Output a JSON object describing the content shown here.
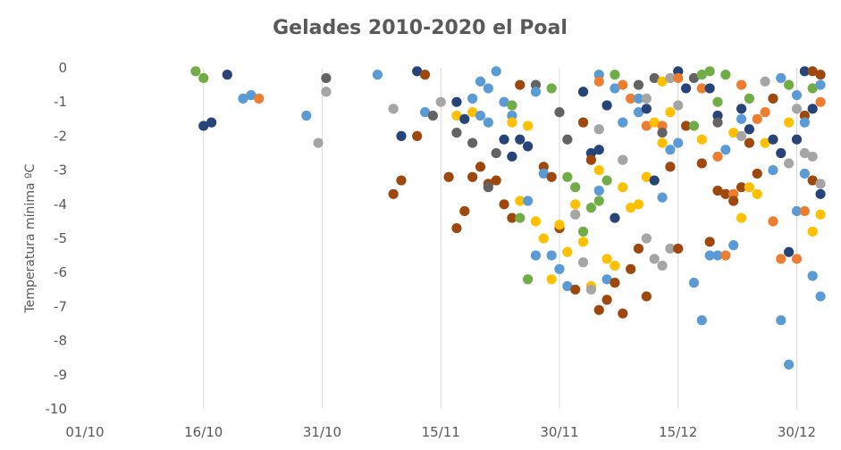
{
  "chart_data": {
    "type": "scatter",
    "title": "Gelades 2010-2020 el Poal",
    "ylabel": "Temperatura mínima ºC",
    "xlabel": "",
    "ylim": [
      -10,
      0
    ],
    "y_ticks": [
      "0",
      "-1",
      "-2",
      "-3",
      "-4",
      "-5",
      "-6",
      "-7",
      "-8",
      "-9",
      "-10"
    ],
    "x_ticks": [
      "01/10",
      "16/10",
      "31/10",
      "15/11",
      "30/11",
      "15/12",
      "30/12"
    ],
    "x_axis": "day of the cold season, 01/10 = 0, one unit per day",
    "grid": "vertical lines at each x tick",
    "legend": "none",
    "colors": {
      "blue": "#5b9bd5",
      "orange": "#ed7d31",
      "gray": "#a5a5a5",
      "gold": "#ffc000",
      "green": "#70ad47",
      "navy": "#264478",
      "brown": "#9e480e",
      "darkgray": "#636363"
    },
    "points": [
      {
        "x": 14,
        "y": -0.1,
        "c": "green"
      },
      {
        "x": 15,
        "y": -0.3,
        "c": "green"
      },
      {
        "x": 18,
        "y": -0.2,
        "c": "navy"
      },
      {
        "x": 15,
        "y": -1.7,
        "c": "navy"
      },
      {
        "x": 16,
        "y": -1.6,
        "c": "navy"
      },
      {
        "x": 20,
        "y": -0.9,
        "c": "blue"
      },
      {
        "x": 21,
        "y": -0.8,
        "c": "blue"
      },
      {
        "x": 22,
        "y": -0.9,
        "c": "orange"
      },
      {
        "x": 28,
        "y": -1.4,
        "c": "blue"
      },
      {
        "x": 29.5,
        "y": -2.2,
        "c": "gray"
      },
      {
        "x": 30.5,
        "y": -0.3,
        "c": "darkgray"
      },
      {
        "x": 30.5,
        "y": -0.7,
        "c": "gray"
      },
      {
        "x": 37,
        "y": -0.2,
        "c": "blue"
      },
      {
        "x": 39,
        "y": -1.2,
        "c": "gray"
      },
      {
        "x": 39,
        "y": -3.7,
        "c": "brown"
      },
      {
        "x": 40,
        "y": -2.0,
        "c": "navy"
      },
      {
        "x": 40,
        "y": -3.3,
        "c": "brown"
      },
      {
        "x": 42,
        "y": -0.1,
        "c": "navy"
      },
      {
        "x": 42,
        "y": -2.0,
        "c": "brown"
      },
      {
        "x": 43,
        "y": -0.2,
        "c": "brown"
      },
      {
        "x": 43,
        "y": -1.3,
        "c": "blue"
      },
      {
        "x": 44,
        "y": -1.4,
        "c": "darkgray"
      },
      {
        "x": 45,
        "y": -1.0,
        "c": "gray"
      },
      {
        "x": 46,
        "y": -3.2,
        "c": "brown"
      },
      {
        "x": 47,
        "y": -1.0,
        "c": "navy"
      },
      {
        "x": 47,
        "y": -1.4,
        "c": "gold"
      },
      {
        "x": 47,
        "y": -1.9,
        "c": "darkgray"
      },
      {
        "x": 47,
        "y": -4.7,
        "c": "brown"
      },
      {
        "x": 48,
        "y": -1.5,
        "c": "navy"
      },
      {
        "x": 48,
        "y": -4.2,
        "c": "brown"
      },
      {
        "x": 49,
        "y": -0.9,
        "c": "blue"
      },
      {
        "x": 49,
        "y": -1.3,
        "c": "gold"
      },
      {
        "x": 49,
        "y": -2.2,
        "c": "darkgray"
      },
      {
        "x": 49,
        "y": -3.2,
        "c": "brown"
      },
      {
        "x": 50,
        "y": -0.4,
        "c": "blue"
      },
      {
        "x": 50,
        "y": -1.4,
        "c": "blue"
      },
      {
        "x": 50,
        "y": -2.9,
        "c": "brown"
      },
      {
        "x": 51,
        "y": -0.6,
        "c": "blue"
      },
      {
        "x": 51,
        "y": -1.6,
        "c": "blue"
      },
      {
        "x": 51,
        "y": -3.4,
        "c": "brown"
      },
      {
        "x": 51,
        "y": -3.5,
        "c": "darkgray"
      },
      {
        "x": 52,
        "y": -0.1,
        "c": "blue"
      },
      {
        "x": 52,
        "y": -2.5,
        "c": "darkgray"
      },
      {
        "x": 52,
        "y": -3.3,
        "c": "brown"
      },
      {
        "x": 53,
        "y": -1.0,
        "c": "blue"
      },
      {
        "x": 53,
        "y": -2.1,
        "c": "navy"
      },
      {
        "x": 53,
        "y": -4.0,
        "c": "brown"
      },
      {
        "x": 54,
        "y": -1.1,
        "c": "green"
      },
      {
        "x": 54,
        "y": -1.4,
        "c": "blue"
      },
      {
        "x": 54,
        "y": -1.6,
        "c": "gold"
      },
      {
        "x": 54,
        "y": -2.6,
        "c": "navy"
      },
      {
        "x": 54,
        "y": -4.4,
        "c": "brown"
      },
      {
        "x": 55,
        "y": -0.5,
        "c": "brown"
      },
      {
        "x": 55,
        "y": -2.1,
        "c": "navy"
      },
      {
        "x": 55,
        "y": -3.9,
        "c": "gold"
      },
      {
        "x": 55,
        "y": -4.4,
        "c": "green"
      },
      {
        "x": 56,
        "y": -1.7,
        "c": "gold"
      },
      {
        "x": 56,
        "y": -2.3,
        "c": "navy"
      },
      {
        "x": 56,
        "y": -3.9,
        "c": "blue"
      },
      {
        "x": 56,
        "y": -6.2,
        "c": "green"
      },
      {
        "x": 57,
        "y": -0.5,
        "c": "darkgray"
      },
      {
        "x": 57,
        "y": -0.7,
        "c": "blue"
      },
      {
        "x": 57,
        "y": -4.5,
        "c": "gold"
      },
      {
        "x": 57,
        "y": -5.5,
        "c": "blue"
      },
      {
        "x": 58,
        "y": -2.9,
        "c": "brown"
      },
      {
        "x": 58,
        "y": -3.1,
        "c": "blue"
      },
      {
        "x": 58,
        "y": -5.0,
        "c": "gold"
      },
      {
        "x": 59,
        "y": -0.6,
        "c": "green"
      },
      {
        "x": 59,
        "y": -3.2,
        "c": "brown"
      },
      {
        "x": 59,
        "y": -5.5,
        "c": "blue"
      },
      {
        "x": 59,
        "y": -6.2,
        "c": "gold"
      },
      {
        "x": 60,
        "y": -1.3,
        "c": "darkgray"
      },
      {
        "x": 60,
        "y": -4.7,
        "c": "brown"
      },
      {
        "x": 60,
        "y": -5.9,
        "c": "blue"
      },
      {
        "x": 60,
        "y": -4.6,
        "c": "gold"
      },
      {
        "x": 61,
        "y": -2.1,
        "c": "darkgray"
      },
      {
        "x": 61,
        "y": -3.2,
        "c": "green"
      },
      {
        "x": 61,
        "y": -5.4,
        "c": "gold"
      },
      {
        "x": 61,
        "y": -6.4,
        "c": "blue"
      },
      {
        "x": 62,
        "y": -3.5,
        "c": "green"
      },
      {
        "x": 62,
        "y": -4.0,
        "c": "gold"
      },
      {
        "x": 62,
        "y": -4.3,
        "c": "gray"
      },
      {
        "x": 62,
        "y": -6.5,
        "c": "brown"
      },
      {
        "x": 63,
        "y": -0.7,
        "c": "navy"
      },
      {
        "x": 63,
        "y": -1.6,
        "c": "brown"
      },
      {
        "x": 63,
        "y": -4.8,
        "c": "green"
      },
      {
        "x": 63,
        "y": -5.1,
        "c": "gold"
      },
      {
        "x": 63,
        "y": -5.7,
        "c": "gray"
      },
      {
        "x": 64,
        "y": -2.5,
        "c": "navy"
      },
      {
        "x": 64,
        "y": -2.7,
        "c": "brown"
      },
      {
        "x": 64,
        "y": -4.1,
        "c": "green"
      },
      {
        "x": 64,
        "y": -6.4,
        "c": "gold"
      },
      {
        "x": 64,
        "y": -6.5,
        "c": "gray"
      },
      {
        "x": 65,
        "y": -0.2,
        "c": "blue"
      },
      {
        "x": 65,
        "y": -0.4,
        "c": "orange"
      },
      {
        "x": 65,
        "y": -1.8,
        "c": "gray"
      },
      {
        "x": 65,
        "y": -2.4,
        "c": "navy"
      },
      {
        "x": 65,
        "y": -3.0,
        "c": "gold"
      },
      {
        "x": 65,
        "y": -3.6,
        "c": "blue"
      },
      {
        "x": 65,
        "y": -3.9,
        "c": "green"
      },
      {
        "x": 65,
        "y": -7.1,
        "c": "brown"
      },
      {
        "x": 66,
        "y": -1.1,
        "c": "navy"
      },
      {
        "x": 66,
        "y": -3.3,
        "c": "green"
      },
      {
        "x": 66,
        "y": -5.6,
        "c": "gold"
      },
      {
        "x": 66,
        "y": -6.2,
        "c": "blue"
      },
      {
        "x": 66,
        "y": -6.8,
        "c": "brown"
      },
      {
        "x": 67,
        "y": -0.2,
        "c": "green"
      },
      {
        "x": 67,
        "y": -0.6,
        "c": "blue"
      },
      {
        "x": 67,
        "y": -4.4,
        "c": "navy"
      },
      {
        "x": 67,
        "y": -5.8,
        "c": "gold"
      },
      {
        "x": 67,
        "y": -6.3,
        "c": "brown"
      },
      {
        "x": 68,
        "y": -0.5,
        "c": "orange"
      },
      {
        "x": 68,
        "y": -1.6,
        "c": "blue"
      },
      {
        "x": 68,
        "y": -2.7,
        "c": "gray"
      },
      {
        "x": 68,
        "y": -3.5,
        "c": "gold"
      },
      {
        "x": 68,
        "y": -7.2,
        "c": "brown"
      },
      {
        "x": 69,
        "y": -0.9,
        "c": "orange"
      },
      {
        "x": 69,
        "y": -4.1,
        "c": "gold"
      },
      {
        "x": 69,
        "y": -5.9,
        "c": "brown"
      },
      {
        "x": 70,
        "y": -0.5,
        "c": "darkgray"
      },
      {
        "x": 70,
        "y": -0.9,
        "c": "blue"
      },
      {
        "x": 70,
        "y": -1.3,
        "c": "blue"
      },
      {
        "x": 70,
        "y": -4.0,
        "c": "gold"
      },
      {
        "x": 70,
        "y": -5.3,
        "c": "brown"
      },
      {
        "x": 71,
        "y": -0.9,
        "c": "gray"
      },
      {
        "x": 71,
        "y": -1.2,
        "c": "navy"
      },
      {
        "x": 71,
        "y": -1.7,
        "c": "orange"
      },
      {
        "x": 71,
        "y": -3.2,
        "c": "gold"
      },
      {
        "x": 71,
        "y": -5.0,
        "c": "gray"
      },
      {
        "x": 71,
        "y": -6.7,
        "c": "brown"
      },
      {
        "x": 72,
        "y": -0.3,
        "c": "darkgray"
      },
      {
        "x": 72,
        "y": -1.6,
        "c": "gold"
      },
      {
        "x": 72,
        "y": -3.3,
        "c": "navy"
      },
      {
        "x": 72,
        "y": -5.6,
        "c": "gray"
      },
      {
        "x": 73,
        "y": -0.4,
        "c": "gold"
      },
      {
        "x": 73,
        "y": -1.7,
        "c": "orange"
      },
      {
        "x": 73,
        "y": -1.9,
        "c": "darkgray"
      },
      {
        "x": 73,
        "y": -2.2,
        "c": "gold"
      },
      {
        "x": 73,
        "y": -3.8,
        "c": "blue"
      },
      {
        "x": 73,
        "y": -5.8,
        "c": "gray"
      },
      {
        "x": 74,
        "y": -0.3,
        "c": "gray"
      },
      {
        "x": 74,
        "y": -1.3,
        "c": "gold"
      },
      {
        "x": 74,
        "y": -2.4,
        "c": "blue"
      },
      {
        "x": 74,
        "y": -2.9,
        "c": "brown"
      },
      {
        "x": 74,
        "y": -5.3,
        "c": "gray"
      },
      {
        "x": 75,
        "y": -0.1,
        "c": "navy"
      },
      {
        "x": 75,
        "y": -0.3,
        "c": "orange"
      },
      {
        "x": 75,
        "y": -1.1,
        "c": "gray"
      },
      {
        "x": 75,
        "y": -2.2,
        "c": "blue"
      },
      {
        "x": 75,
        "y": -5.3,
        "c": "brown"
      },
      {
        "x": 76,
        "y": -0.6,
        "c": "navy"
      },
      {
        "x": 76,
        "y": -1.7,
        "c": "brown"
      },
      {
        "x": 77,
        "y": -0.3,
        "c": "darkgray"
      },
      {
        "x": 77,
        "y": -1.7,
        "c": "green"
      },
      {
        "x": 77,
        "y": -6.3,
        "c": "blue"
      },
      {
        "x": 78,
        "y": -0.2,
        "c": "green"
      },
      {
        "x": 78,
        "y": -0.6,
        "c": "orange"
      },
      {
        "x": 78,
        "y": -2.1,
        "c": "gold"
      },
      {
        "x": 78,
        "y": -2.8,
        "c": "brown"
      },
      {
        "x": 78,
        "y": -7.4,
        "c": "blue"
      },
      {
        "x": 79,
        "y": -0.1,
        "c": "green"
      },
      {
        "x": 79,
        "y": -0.6,
        "c": "navy"
      },
      {
        "x": 79,
        "y": -5.1,
        "c": "brown"
      },
      {
        "x": 79,
        "y": -5.5,
        "c": "blue"
      },
      {
        "x": 80,
        "y": -1.0,
        "c": "green"
      },
      {
        "x": 80,
        "y": -1.4,
        "c": "navy"
      },
      {
        "x": 80,
        "y": -1.6,
        "c": "darkgray"
      },
      {
        "x": 80,
        "y": -2.6,
        "c": "orange"
      },
      {
        "x": 80,
        "y": -3.6,
        "c": "brown"
      },
      {
        "x": 80,
        "y": -5.5,
        "c": "blue"
      },
      {
        "x": 81,
        "y": -0.2,
        "c": "green"
      },
      {
        "x": 81,
        "y": -2.4,
        "c": "blue"
      },
      {
        "x": 81,
        "y": -3.7,
        "c": "brown"
      },
      {
        "x": 81,
        "y": -5.5,
        "c": "orange"
      },
      {
        "x": 82,
        "y": -1.9,
        "c": "gold"
      },
      {
        "x": 82,
        "y": -3.7,
        "c": "orange"
      },
      {
        "x": 82,
        "y": -3.9,
        "c": "brown"
      },
      {
        "x": 82,
        "y": -5.2,
        "c": "blue"
      },
      {
        "x": 83,
        "y": -0.5,
        "c": "orange"
      },
      {
        "x": 83,
        "y": -1.2,
        "c": "navy"
      },
      {
        "x": 83,
        "y": -1.5,
        "c": "blue"
      },
      {
        "x": 83,
        "y": -2.0,
        "c": "gray"
      },
      {
        "x": 83,
        "y": -3.5,
        "c": "brown"
      },
      {
        "x": 83,
        "y": -4.4,
        "c": "gold"
      },
      {
        "x": 84,
        "y": -0.9,
        "c": "green"
      },
      {
        "x": 84,
        "y": -1.8,
        "c": "navy"
      },
      {
        "x": 84,
        "y": -2.2,
        "c": "brown"
      },
      {
        "x": 84,
        "y": -3.5,
        "c": "gold"
      },
      {
        "x": 85,
        "y": -1.5,
        "c": "orange"
      },
      {
        "x": 85,
        "y": -3.1,
        "c": "brown"
      },
      {
        "x": 85,
        "y": -3.7,
        "c": "gold"
      },
      {
        "x": 86,
        "y": -0.4,
        "c": "gray"
      },
      {
        "x": 86,
        "y": -1.3,
        "c": "orange"
      },
      {
        "x": 86,
        "y": -2.2,
        "c": "gold"
      },
      {
        "x": 87,
        "y": -0.9,
        "c": "brown"
      },
      {
        "x": 87,
        "y": -2.1,
        "c": "navy"
      },
      {
        "x": 87,
        "y": -3.0,
        "c": "blue"
      },
      {
        "x": 87,
        "y": -4.5,
        "c": "orange"
      },
      {
        "x": 88,
        "y": -0.3,
        "c": "blue"
      },
      {
        "x": 88,
        "y": -2.5,
        "c": "navy"
      },
      {
        "x": 88,
        "y": -5.6,
        "c": "orange"
      },
      {
        "x": 88,
        "y": -7.4,
        "c": "blue"
      },
      {
        "x": 89,
        "y": -0.5,
        "c": "green"
      },
      {
        "x": 89,
        "y": -1.6,
        "c": "gold"
      },
      {
        "x": 89,
        "y": -2.8,
        "c": "gray"
      },
      {
        "x": 89,
        "y": -5.4,
        "c": "navy"
      },
      {
        "x": 89,
        "y": -8.7,
        "c": "blue"
      },
      {
        "x": 90,
        "y": -0.8,
        "c": "blue"
      },
      {
        "x": 90,
        "y": -1.2,
        "c": "gray"
      },
      {
        "x": 90,
        "y": -2.1,
        "c": "navy"
      },
      {
        "x": 90,
        "y": -4.2,
        "c": "blue"
      },
      {
        "x": 90,
        "y": -5.6,
        "c": "orange"
      },
      {
        "x": 91,
        "y": -0.1,
        "c": "navy"
      },
      {
        "x": 91,
        "y": -1.4,
        "c": "brown"
      },
      {
        "x": 91,
        "y": -1.6,
        "c": "blue"
      },
      {
        "x": 91,
        "y": -2.5,
        "c": "gray"
      },
      {
        "x": 91,
        "y": -3.1,
        "c": "blue"
      },
      {
        "x": 91,
        "y": -4.2,
        "c": "orange"
      },
      {
        "x": 92,
        "y": -0.1,
        "c": "brown"
      },
      {
        "x": 92,
        "y": -0.6,
        "c": "green"
      },
      {
        "x": 92,
        "y": -1.2,
        "c": "navy"
      },
      {
        "x": 92,
        "y": -2.6,
        "c": "gray"
      },
      {
        "x": 92,
        "y": -3.3,
        "c": "brown"
      },
      {
        "x": 92,
        "y": -4.8,
        "c": "gold"
      },
      {
        "x": 92,
        "y": -6.1,
        "c": "blue"
      },
      {
        "x": 93,
        "y": -0.2,
        "c": "brown"
      },
      {
        "x": 93,
        "y": -0.5,
        "c": "blue"
      },
      {
        "x": 93,
        "y": -1.0,
        "c": "orange"
      },
      {
        "x": 93,
        "y": -3.4,
        "c": "gray"
      },
      {
        "x": 93,
        "y": -3.7,
        "c": "navy"
      },
      {
        "x": 93,
        "y": -4.3,
        "c": "gold"
      },
      {
        "x": 93,
        "y": -6.7,
        "c": "blue"
      }
    ]
  }
}
